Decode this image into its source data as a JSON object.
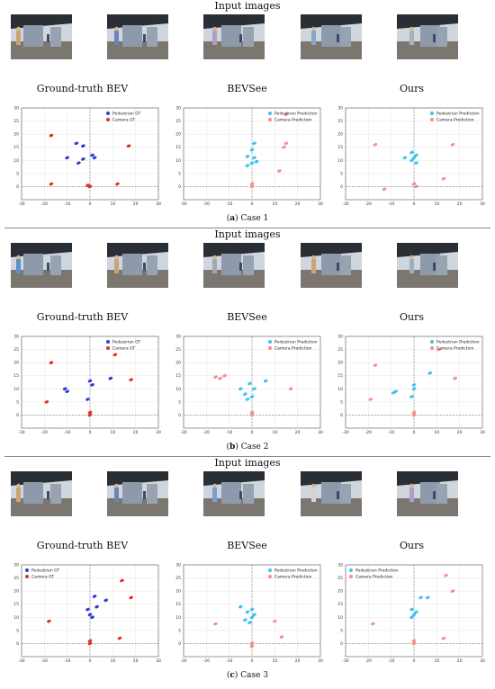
{
  "cases": [
    {
      "heading": "Input images",
      "labels": [
        "Ground-truth BEV",
        "BEVSee",
        "Ours"
      ],
      "caption_letter": "a",
      "caption_text": "Case 1",
      "thumb_colors": [
        "#c8a574",
        "#6a83b8",
        "#b59cc4",
        "#8aa6c6",
        "#a9b2bb"
      ],
      "chart_data": [
        {
          "type": "scatter",
          "xlim": [
            -30,
            30
          ],
          "ylim": [
            -5,
            30
          ],
          "xticks": [
            -30,
            -20,
            -10,
            0,
            10,
            20,
            30
          ],
          "yticks": [
            0,
            5,
            10,
            15,
            20,
            25,
            30
          ],
          "legend_position": "top-right",
          "series": [
            {
              "name": "Pedestrian GT",
              "color": "#2f3fd6",
              "points": [
                [
                  -6,
                  16.5
                ],
                [
                  -3,
                  15.5
                ],
                [
                  -10,
                  11
                ],
                [
                  -3,
                  10.5
                ],
                [
                  -5,
                  9
                ],
                [
                  1,
                  12
                ],
                [
                  2,
                  11
                ]
              ]
            },
            {
              "name": "Camera GT",
              "color": "#e0302a",
              "points": [
                [
                  -17,
                  19.5
                ],
                [
                  17,
                  15.5
                ],
                [
                  -17,
                  1
                ],
                [
                  0,
                  0
                ],
                [
                  12,
                  1
                ],
                [
                  -1,
                  0.5
                ]
              ]
            }
          ]
        },
        {
          "type": "scatter",
          "xlim": [
            -30,
            30
          ],
          "ylim": [
            -5,
            30
          ],
          "xticks": [
            -30,
            -20,
            -10,
            0,
            10,
            20,
            30
          ],
          "yticks": [
            0,
            5,
            10,
            15,
            20,
            25,
            30
          ],
          "legend_position": "top-right",
          "series": [
            {
              "name": "Pedestrian Prediction",
              "color": "#3ec3ef",
              "points": [
                [
                  1,
                  16.5
                ],
                [
                  0,
                  14
                ],
                [
                  -2,
                  11.5
                ],
                [
                  1,
                  11
                ],
                [
                  0,
                  9
                ],
                [
                  -2,
                  8
                ],
                [
                  2,
                  9.5
                ]
              ]
            },
            {
              "name": "Camera Prediction",
              "color": "#f09090",
              "points": [
                [
                  15,
                  27.5
                ],
                [
                  15,
                  16.5
                ],
                [
                  14,
                  15
                ],
                [
                  12,
                  6
                ],
                [
                  0,
                  1
                ],
                [
                  0,
                  0
                ]
              ]
            }
          ]
        },
        {
          "type": "scatter",
          "xlim": [
            -30,
            30
          ],
          "ylim": [
            -5,
            30
          ],
          "xticks": [
            -30,
            -20,
            -10,
            0,
            10,
            20,
            30
          ],
          "yticks": [
            0,
            5,
            10,
            15,
            20,
            25,
            30
          ],
          "legend_position": "top-right",
          "series": [
            {
              "name": "Pedestrian Prediction",
              "color": "#3ec3ef",
              "points": [
                [
                  -1,
                  13
                ],
                [
                  -4,
                  11
                ],
                [
                  0,
                  11
                ],
                [
                  1,
                  12
                ],
                [
                  1,
                  9
                ],
                [
                  -1,
                  10
                ]
              ]
            },
            {
              "name": "Camera Prediction",
              "color": "#f09090",
              "points": [
                [
                  -17,
                  16
                ],
                [
                  17,
                  16
                ],
                [
                  -13,
                  -1
                ],
                [
                  1,
                  0
                ],
                [
                  13,
                  3
                ],
                [
                  0,
                  1
                ]
              ]
            }
          ]
        }
      ]
    },
    {
      "heading": "Input images",
      "labels": [
        "Ground-truth BEV",
        "BEVSee",
        "Ours"
      ],
      "caption_letter": "b",
      "caption_text": "Case 2",
      "thumb_colors": [
        "#5f8fc9",
        "#c8a574",
        "#a0a7b0",
        "#c8a574",
        "#9ab0c5"
      ],
      "chart_data": [
        {
          "type": "scatter",
          "xlim": [
            -30,
            30
          ],
          "ylim": [
            -5,
            30
          ],
          "xticks": [
            -30,
            -20,
            -10,
            0,
            10,
            20,
            30
          ],
          "yticks": [
            0,
            5,
            10,
            15,
            20,
            25,
            30
          ],
          "legend_position": "top-right",
          "series": [
            {
              "name": "Pedestrian GT",
              "color": "#2f3fd6",
              "points": [
                [
                  -10,
                  9
                ],
                [
                  -11,
                  10
                ],
                [
                  1,
                  11.5
                ],
                [
                  -1,
                  6
                ],
                [
                  9,
                  14
                ],
                [
                  0,
                  13
                ]
              ]
            },
            {
              "name": "Camera GT",
              "color": "#e0302a",
              "points": [
                [
                  -17,
                  20
                ],
                [
                  11,
                  23
                ],
                [
                  -19,
                  5
                ],
                [
                  18,
                  13.5
                ],
                [
                  0,
                  0
                ],
                [
                  0,
                  1
                ]
              ]
            }
          ]
        },
        {
          "type": "scatter",
          "xlim": [
            -30,
            30
          ],
          "ylim": [
            -5,
            30
          ],
          "xticks": [
            -30,
            -20,
            -10,
            0,
            10,
            20,
            30
          ],
          "yticks": [
            0,
            5,
            10,
            15,
            20,
            25,
            30
          ],
          "legend_position": "top-right",
          "series": [
            {
              "name": "Pedestrian Prediction",
              "color": "#3ec3ef",
              "points": [
                [
                  -5,
                  10
                ],
                [
                  -3,
                  8
                ],
                [
                  -2,
                  6
                ],
                [
                  0,
                  7
                ],
                [
                  1,
                  10
                ],
                [
                  6,
                  13
                ],
                [
                  -1,
                  12
                ]
              ]
            },
            {
              "name": "Camera Prediction",
              "color": "#f09090",
              "points": [
                [
                  -14,
                  14
                ],
                [
                  -12,
                  15
                ],
                [
                  -16,
                  14.5
                ],
                [
                  17,
                  10
                ],
                [
                  0,
                  0
                ],
                [
                  0,
                  1
                ]
              ]
            }
          ]
        },
        {
          "type": "scatter",
          "xlim": [
            -30,
            30
          ],
          "ylim": [
            -5,
            30
          ],
          "xticks": [
            -30,
            -20,
            -10,
            0,
            10,
            20,
            30
          ],
          "yticks": [
            0,
            5,
            10,
            15,
            20,
            25,
            30
          ],
          "legend_position": "top-right",
          "series": [
            {
              "name": "Pedestrian Prediction",
              "color": "#3ec3ef",
              "points": [
                [
                  -8,
                  9
                ],
                [
                  -9,
                  8.5
                ],
                [
                  0,
                  11.5
                ],
                [
                  -1,
                  7
                ],
                [
                  7,
                  16
                ],
                [
                  0,
                  10
                ]
              ]
            },
            {
              "name": "Camera Prediction",
              "color": "#f09090",
              "points": [
                [
                  -17,
                  19
                ],
                [
                  11,
                  25
                ],
                [
                  -19,
                  6
                ],
                [
                  18,
                  14
                ],
                [
                  0,
                  1
                ],
                [
                  0,
                  0
                ]
              ]
            }
          ]
        }
      ]
    },
    {
      "heading": "Input images",
      "labels": [
        "Ground-truth BEV",
        "BEVSee",
        "Ours"
      ],
      "caption_letter": "c",
      "caption_text": "Case 3",
      "thumb_colors": [
        "#c8a574",
        "#6a83b8",
        "#7aa0d0",
        "#d6d2cc",
        "#b59cc4"
      ],
      "chart_data": [
        {
          "type": "scatter",
          "xlim": [
            -30,
            30
          ],
          "ylim": [
            -5,
            30
          ],
          "xticks": [
            -30,
            -20,
            -10,
            0,
            10,
            20,
            30
          ],
          "yticks": [
            0,
            5,
            10,
            15,
            20,
            25,
            30
          ],
          "legend_position": "top-left",
          "series": [
            {
              "name": "Pedestrian GT",
              "color": "#2f3fd6",
              "points": [
                [
                  -1,
                  13
                ],
                [
                  0,
                  11
                ],
                [
                  3,
                  14
                ],
                [
                  2,
                  18
                ],
                [
                  7,
                  16.5
                ],
                [
                  1,
                  10
                ]
              ]
            },
            {
              "name": "Camera GT",
              "color": "#e0302a",
              "points": [
                [
                  -18,
                  8.5
                ],
                [
                  14,
                  24
                ],
                [
                  18,
                  17.5
                ],
                [
                  13,
                  2
                ],
                [
                  0,
                  0
                ],
                [
                  0,
                  1
                ]
              ]
            }
          ]
        },
        {
          "type": "scatter",
          "xlim": [
            -30,
            30
          ],
          "ylim": [
            -5,
            30
          ],
          "xticks": [
            -30,
            -20,
            -10,
            0,
            10,
            20,
            30
          ],
          "yticks": [
            0,
            5,
            10,
            15,
            20,
            25,
            30
          ],
          "legend_position": "top-right",
          "series": [
            {
              "name": "Pedestrian Prediction",
              "color": "#3ec3ef",
              "points": [
                [
                  -5,
                  14
                ],
                [
                  -2,
                  12
                ],
                [
                  0,
                  13
                ],
                [
                  0,
                  10
                ],
                [
                  -1,
                  8
                ],
                [
                  1,
                  11
                ],
                [
                  -3,
                  9
                ]
              ]
            },
            {
              "name": "Camera Prediction",
              "color": "#f09090",
              "points": [
                [
                  -16,
                  7.5
                ],
                [
                  10,
                  8.5
                ],
                [
                  13,
                  2.5
                ],
                [
                  0,
                  -1
                ],
                [
                  0,
                  0
                ]
              ]
            }
          ]
        },
        {
          "type": "scatter",
          "xlim": [
            -30,
            30
          ],
          "ylim": [
            -5,
            30
          ],
          "xticks": [
            -30,
            -20,
            -10,
            0,
            10,
            20,
            30
          ],
          "yticks": [
            0,
            5,
            10,
            15,
            20,
            25,
            30
          ],
          "legend_position": "top-left",
          "series": [
            {
              "name": "Pedestrian Prediction",
              "color": "#3ec3ef",
              "points": [
                [
                  -1,
                  13
                ],
                [
                  0,
                  11
                ],
                [
                  3,
                  17.5
                ],
                [
                  6,
                  17.5
                ],
                [
                  -1,
                  10
                ],
                [
                  1,
                  12
                ]
              ]
            },
            {
              "name": "Camera Prediction",
              "color": "#f09090",
              "points": [
                [
                  -18,
                  7.5
                ],
                [
                  14,
                  26
                ],
                [
                  17,
                  20
                ],
                [
                  13,
                  2
                ],
                [
                  0,
                  0
                ],
                [
                  0,
                  1
                ]
              ]
            }
          ]
        }
      ]
    }
  ]
}
